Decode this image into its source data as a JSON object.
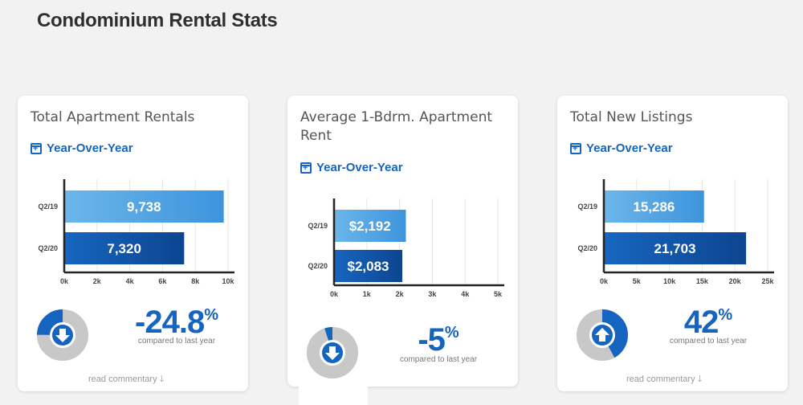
{
  "page": {
    "title": "Condominium Rental Stats"
  },
  "colors": {
    "accent": "#1565c0",
    "bar_light": "#5aa9e6",
    "bar_dark": "#0d47a1",
    "gauge_track": "#cccccc"
  },
  "cards": [
    {
      "title": "Total Apartment Rentals",
      "period_label": "Year-Over-Year",
      "chart_data": {
        "type": "bar",
        "orientation": "horizontal",
        "categories": [
          "Q2/19",
          "Q2/20"
        ],
        "values": [
          9738,
          7320
        ],
        "value_labels": [
          "9,738",
          "7,320"
        ],
        "xlim": [
          0,
          10000
        ],
        "ticks": [
          "0k",
          "2k",
          "4k",
          "6k",
          "8k",
          "10k"
        ]
      },
      "change": {
        "value": "-24.8",
        "symbol": "%",
        "direction": "down",
        "fraction": 0.248,
        "icon": "arrow-down-icon"
      },
      "compare_text": "compared to last year",
      "commentary_label": "read commentary"
    },
    {
      "title": "Average 1-Bdrm. Apartment Rent",
      "period_label": "Year-Over-Year",
      "chart_data": {
        "type": "bar",
        "orientation": "horizontal",
        "categories": [
          "Q2/19",
          "Q2/20"
        ],
        "values": [
          2192,
          2083
        ],
        "value_labels": [
          "$2,192",
          "$2,083"
        ],
        "xlim": [
          0,
          5000
        ],
        "ticks": [
          "0k",
          "1k",
          "2k",
          "3k",
          "4k",
          "5k"
        ]
      },
      "change": {
        "value": "-5",
        "symbol": "%",
        "direction": "down",
        "fraction": 0.05,
        "icon": "arrow-down-icon"
      },
      "compare_text": "compared to last year",
      "commentary_label": ""
    },
    {
      "title": "Total New Listings",
      "period_label": "Year-Over-Year",
      "chart_data": {
        "type": "bar",
        "orientation": "horizontal",
        "categories": [
          "Q2/19",
          "Q2/20"
        ],
        "values": [
          15286,
          21703
        ],
        "value_labels": [
          "15,286",
          "21,703"
        ],
        "xlim": [
          0,
          25000
        ],
        "ticks": [
          "0k",
          "5k",
          "10k",
          "15k",
          "20k",
          "25k"
        ]
      },
      "change": {
        "value": "42",
        "symbol": "%",
        "direction": "up",
        "fraction": 0.42,
        "icon": "arrow-up-icon"
      },
      "compare_text": "compared to last year",
      "commentary_label": "read commentary"
    }
  ]
}
